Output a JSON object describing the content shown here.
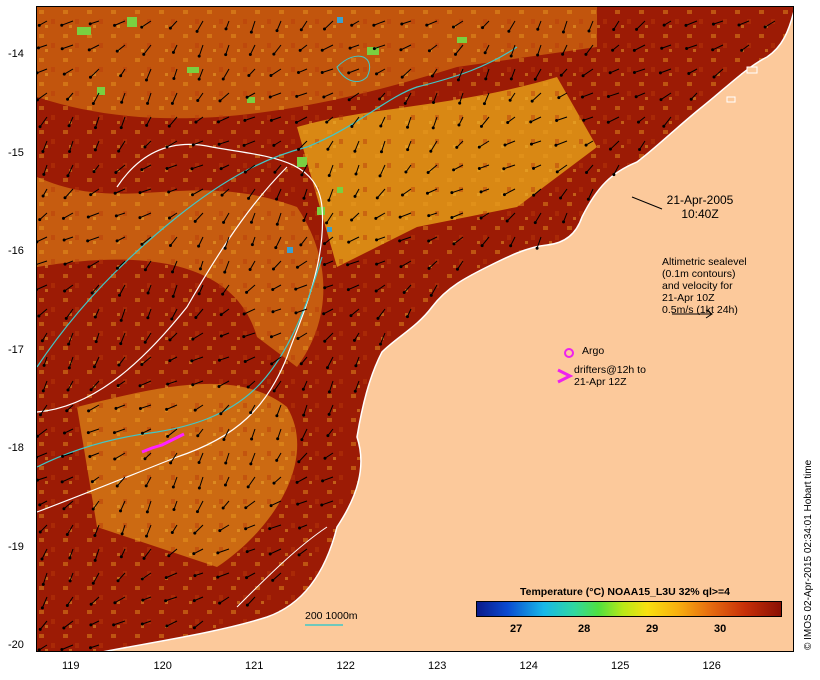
{
  "map": {
    "lat_ticks": [
      "-14",
      "-15",
      "-16",
      "-17",
      "-18",
      "-19",
      "-20"
    ],
    "lon_ticks": [
      "119",
      "120",
      "121",
      "122",
      "123",
      "124",
      "125",
      "126"
    ],
    "date_line1": "21-Apr-2005",
    "date_line2": "10:40Z",
    "alt_lines": [
      "Altimetric sealevel",
      "(0.1m contours)",
      "and velocity for",
      "21-Apr 10Z",
      "0.5m/s (1kt 24h)"
    ],
    "argo_label": "Argo",
    "drifter_line1": "drifters@12h to",
    "drifter_line2": "21-Apr 12Z",
    "scale_label": "200  1000m",
    "colorbar_title": "Temperature (°C) NOAA15_L3U 32% ql>=4",
    "colorbar_ticks": [
      "27",
      "28",
      "29",
      "30"
    ],
    "credit": "© IMOS 02-Apr-2015 02:34:01 Hobart time",
    "colors": {
      "land": "#fcc99b",
      "sea_deep_red": "#9c1b05",
      "sea_orange": "#d8800f",
      "argo": "#ee22ee",
      "isobath": "#ffffff",
      "contour": "#40c8c8"
    }
  }
}
